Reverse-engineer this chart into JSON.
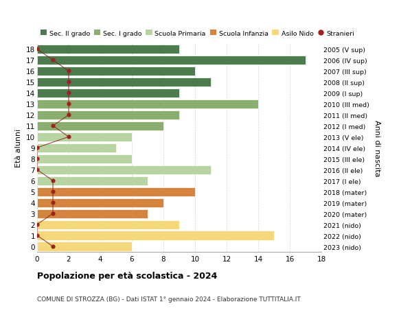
{
  "ages": [
    18,
    17,
    16,
    15,
    14,
    13,
    12,
    11,
    10,
    9,
    8,
    7,
    6,
    5,
    4,
    3,
    2,
    1,
    0
  ],
  "right_labels": [
    "2005 (V sup)",
    "2006 (IV sup)",
    "2007 (III sup)",
    "2008 (II sup)",
    "2009 (I sup)",
    "2010 (III med)",
    "2011 (II med)",
    "2012 (I med)",
    "2013 (V ele)",
    "2014 (IV ele)",
    "2015 (III ele)",
    "2016 (II ele)",
    "2017 (I ele)",
    "2018 (mater)",
    "2019 (mater)",
    "2020 (mater)",
    "2021 (nido)",
    "2022 (nido)",
    "2023 (nido)"
  ],
  "bar_values": [
    9,
    17,
    10,
    11,
    9,
    14,
    9,
    8,
    6,
    5,
    6,
    11,
    7,
    10,
    8,
    7,
    9,
    15,
    6
  ],
  "bar_colors": [
    "#4a7c4e",
    "#4a7c4e",
    "#4a7c4e",
    "#4a7c4e",
    "#4a7c4e",
    "#8aae6e",
    "#8aae6e",
    "#8aae6e",
    "#b8d4a0",
    "#b8d4a0",
    "#b8d4a0",
    "#b8d4a0",
    "#b8d4a0",
    "#d4843e",
    "#d4843e",
    "#d4843e",
    "#f5d87a",
    "#f5d87a",
    "#f5d87a"
  ],
  "stranieri_values": [
    0,
    1,
    2,
    2,
    2,
    2,
    2,
    1,
    2,
    0,
    0,
    0,
    1,
    1,
    1,
    1,
    0,
    0,
    1
  ],
  "legend_labels": [
    "Sec. II grado",
    "Sec. I grado",
    "Scuola Primaria",
    "Scuola Infanzia",
    "Asilo Nido",
    "Stranieri"
  ],
  "legend_colors": [
    "#4a7c4e",
    "#8aae6e",
    "#b8d4a0",
    "#d4843e",
    "#f5d87a",
    "#a02020"
  ],
  "ylabel_left": "Età alunni",
  "ylabel_right": "Anni di nascita",
  "title": "Popolazione per età scolastica - 2024",
  "subtitle": "COMUNE DI STROZZA (BG) - Dati ISTAT 1° gennaio 2024 - Elaborazione TUTTITALIA.IT",
  "xlim": [
    0,
    18
  ],
  "xticks": [
    0,
    2,
    4,
    6,
    8,
    10,
    12,
    14,
    16,
    18
  ],
  "background_color": "#ffffff",
  "grid_color": "#cccccc"
}
